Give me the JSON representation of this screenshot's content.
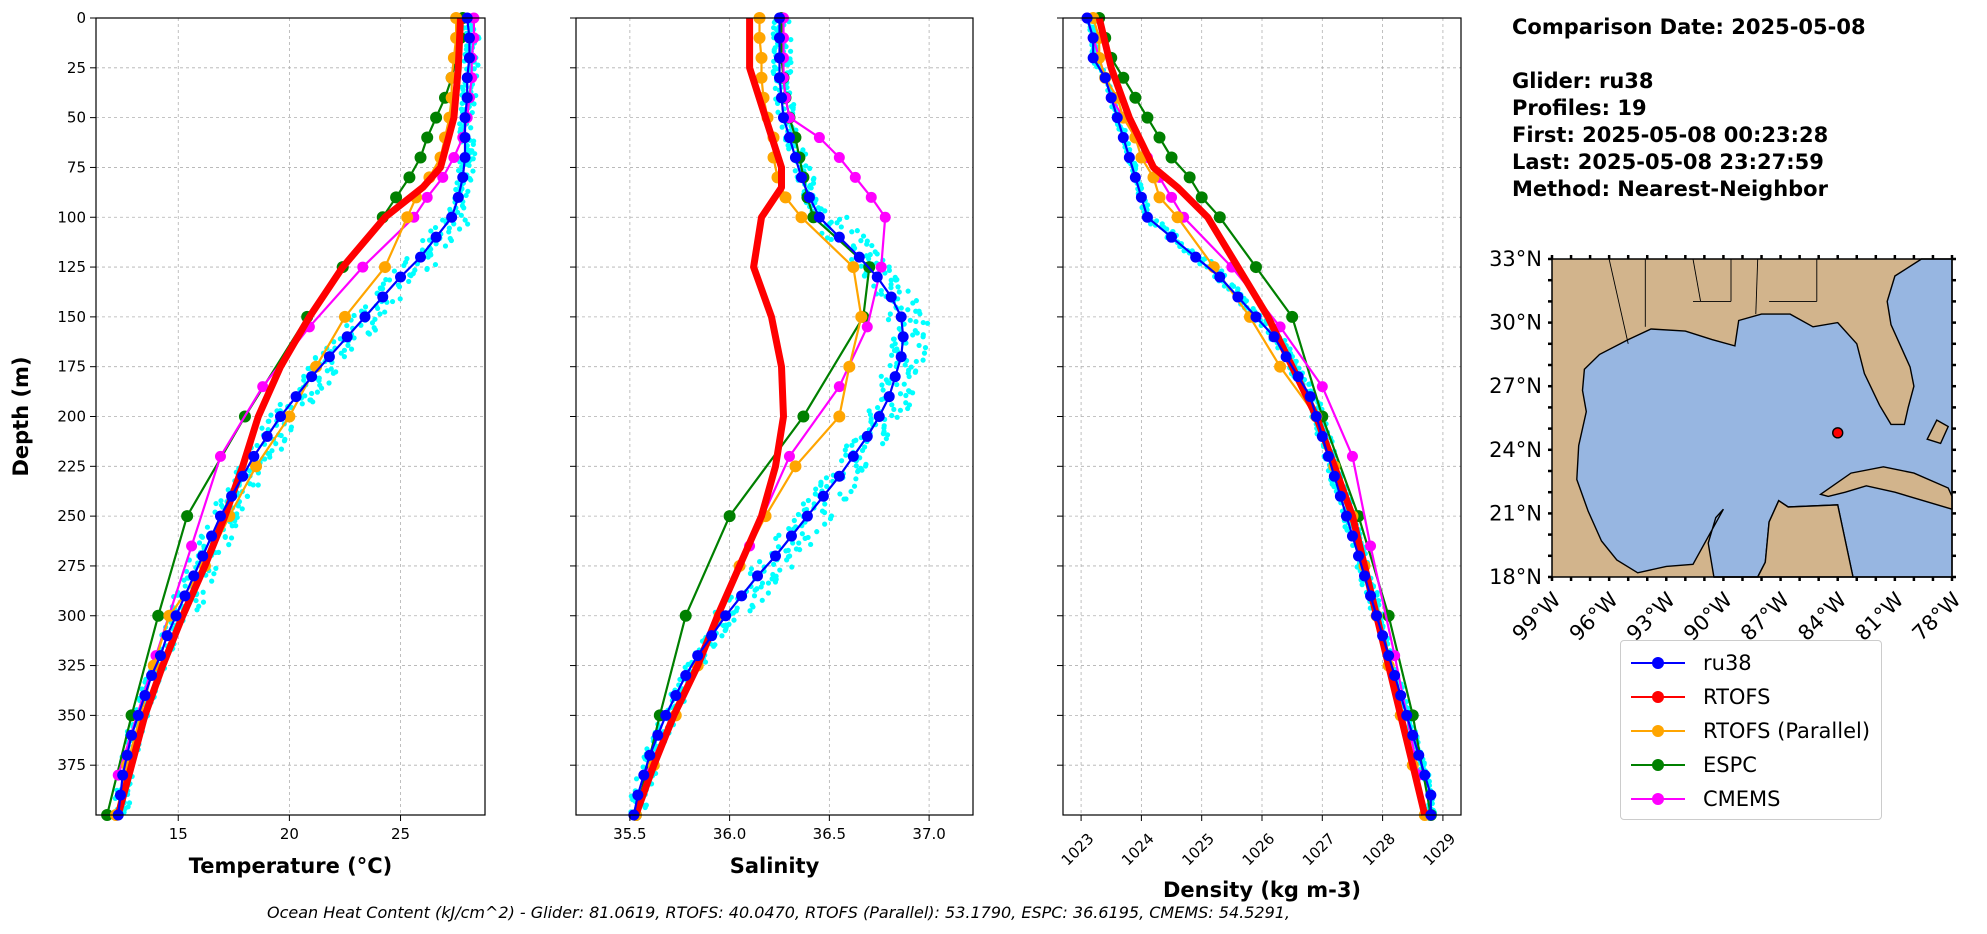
{
  "info": {
    "comparison_date": "Comparison Date: 2025-05-08",
    "glider": "Glider: ru38",
    "profiles": "Profiles: 19",
    "first": "First: 2025-05-08 00:23:28",
    "last": "Last: 2025-05-08 23:27:59",
    "method": "Method: Nearest-Neighbor"
  },
  "footnote": "Ocean Heat Content (kJ/cm^2) - Glider: 81.0619,  RTOFS: 40.0470,  RTOFS (Parallel): 53.1790,  ESPC: 36.6195,  CMEMS: 54.5291,",
  "legend": [
    {
      "name": "ru38",
      "color": "#0000ff"
    },
    {
      "name": "RTOFS",
      "color": "#ff0000"
    },
    {
      "name": "RTOFS (Parallel)",
      "color": "#ffa500"
    },
    {
      "name": "ESPC",
      "color": "#008000"
    },
    {
      "name": "CMEMS",
      "color": "#ff00ff"
    }
  ],
  "map": {
    "lat_ticks": [
      "33°N",
      "30°N",
      "27°N",
      "24°N",
      "21°N",
      "18°N"
    ],
    "lon_ticks": [
      "99°W",
      "96°W",
      "93°W",
      "90°W",
      "87°W",
      "84°W",
      "81°W",
      "78°W"
    ],
    "extent": {
      "lon": [
        -99,
        -78
      ],
      "lat": [
        18,
        33
      ]
    },
    "glider_position": {
      "lon": -84.0,
      "lat": 24.8
    },
    "land_color": "#d2b48c",
    "ocean_color": "#97b6e1"
  },
  "chart_data": [
    {
      "type": "line",
      "xlabel": "Temperature (°C)",
      "ylabel": "Depth (m)",
      "xlim": [
        11.3,
        28.8
      ],
      "ylim": [
        400,
        0
      ],
      "xticks": [
        15,
        20,
        25
      ],
      "yticks": [
        0,
        25,
        50,
        75,
        100,
        125,
        150,
        175,
        200,
        225,
        250,
        275,
        300,
        325,
        350,
        375
      ],
      "grid": true,
      "glider_profiles_color": "#00ffff",
      "series": [
        {
          "name": "ru38",
          "depth": [
            0,
            10,
            20,
            30,
            40,
            50,
            60,
            70,
            80,
            90,
            100,
            110,
            120,
            130,
            140,
            150,
            160,
            170,
            180,
            190,
            200,
            210,
            220,
            230,
            240,
            250,
            260,
            270,
            280,
            290,
            300,
            310,
            320,
            330,
            340,
            350,
            360,
            370,
            380,
            390,
            400
          ],
          "x": [
            28.0,
            28.1,
            28.1,
            28.0,
            28.0,
            27.9,
            27.9,
            27.9,
            27.8,
            27.6,
            27.3,
            26.6,
            25.9,
            25.0,
            24.2,
            23.4,
            22.6,
            21.8,
            21.0,
            20.3,
            19.6,
            19.0,
            18.4,
            17.9,
            17.4,
            16.9,
            16.5,
            16.1,
            15.7,
            15.3,
            14.9,
            14.5,
            14.2,
            13.8,
            13.5,
            13.2,
            12.9,
            12.7,
            12.5,
            12.4,
            12.3
          ]
        },
        {
          "name": "RTOFS",
          "depth": [
            0,
            25,
            50,
            75,
            85,
            100,
            125,
            150,
            175,
            200,
            225,
            250,
            275,
            300,
            325,
            350,
            375,
            400
          ],
          "x": [
            27.7,
            27.6,
            27.4,
            26.8,
            26.0,
            24.3,
            22.4,
            20.9,
            19.6,
            18.6,
            17.9,
            17.1,
            16.2,
            15.2,
            14.3,
            13.5,
            12.9,
            12.3
          ]
        },
        {
          "name": "RTOFS (Parallel)",
          "depth": [
            0,
            10,
            20,
            30,
            40,
            50,
            60,
            70,
            80,
            90,
            100,
            125,
            150,
            175,
            200,
            225,
            250,
            275,
            300,
            325,
            350,
            375,
            400
          ],
          "x": [
            27.5,
            27.5,
            27.4,
            27.3,
            27.3,
            27.2,
            27.0,
            26.8,
            26.3,
            25.7,
            25.3,
            24.3,
            22.5,
            21.2,
            20.0,
            18.5,
            17.3,
            16.2,
            14.6,
            13.9,
            13.3,
            12.7,
            12.2
          ]
        },
        {
          "name": "ESPC",
          "depth": [
            0,
            10,
            20,
            30,
            40,
            50,
            60,
            70,
            80,
            90,
            100,
            125,
            150,
            200,
            250,
            300,
            350,
            400
          ],
          "x": [
            27.8,
            27.7,
            27.5,
            27.3,
            27.0,
            26.6,
            26.2,
            25.9,
            25.4,
            24.8,
            24.2,
            22.4,
            20.8,
            18.0,
            15.4,
            14.1,
            12.9,
            11.8
          ]
        },
        {
          "name": "CMEMS",
          "depth": [
            0,
            10,
            20,
            30,
            40,
            50,
            60,
            70,
            80,
            90,
            100,
            125,
            155,
            185,
            220,
            265,
            320,
            380
          ],
          "x": [
            28.3,
            28.3,
            28.2,
            28.2,
            28.1,
            28.0,
            27.8,
            27.4,
            26.9,
            26.2,
            25.6,
            23.3,
            20.9,
            18.8,
            16.9,
            15.6,
            14.0,
            12.3
          ]
        }
      ]
    },
    {
      "type": "line",
      "xlabel": "Salinity",
      "ylabel": "",
      "xlim": [
        35.23,
        37.22
      ],
      "ylim": [
        400,
        0
      ],
      "xticks": [
        35.5,
        36.0,
        36.5,
        37.0
      ],
      "yticks": [
        0,
        25,
        50,
        75,
        100,
        125,
        150,
        175,
        200,
        225,
        250,
        275,
        300,
        325,
        350,
        375
      ],
      "grid": true,
      "series": [
        {
          "name": "ru38",
          "depth": [
            0,
            10,
            20,
            30,
            40,
            50,
            60,
            70,
            80,
            90,
            100,
            110,
            120,
            130,
            140,
            150,
            160,
            170,
            180,
            190,
            200,
            210,
            220,
            230,
            240,
            250,
            260,
            270,
            280,
            290,
            300,
            310,
            320,
            330,
            340,
            350,
            360,
            370,
            380,
            390,
            400
          ],
          "x": [
            36.25,
            36.25,
            36.25,
            36.25,
            36.26,
            36.27,
            36.3,
            36.33,
            36.36,
            36.4,
            36.45,
            36.55,
            36.65,
            36.74,
            36.81,
            36.86,
            36.87,
            36.86,
            36.83,
            36.8,
            36.75,
            36.69,
            36.62,
            36.55,
            36.47,
            36.39,
            36.31,
            36.23,
            36.14,
            36.06,
            35.98,
            35.91,
            35.84,
            35.78,
            35.73,
            35.68,
            35.64,
            35.6,
            35.57,
            35.54,
            35.52
          ]
        },
        {
          "name": "RTOFS",
          "depth": [
            0,
            25,
            50,
            75,
            85,
            100,
            125,
            150,
            175,
            200,
            225,
            250,
            275,
            300,
            325,
            350,
            375,
            400
          ],
          "x": [
            36.1,
            36.1,
            36.18,
            36.26,
            36.26,
            36.16,
            36.12,
            36.21,
            36.26,
            36.27,
            36.23,
            36.16,
            36.05,
            35.94,
            35.84,
            35.72,
            35.62,
            35.53
          ]
        },
        {
          "name": "RTOFS (Parallel)",
          "depth": [
            0,
            10,
            20,
            30,
            40,
            50,
            60,
            70,
            80,
            90,
            100,
            125,
            150,
            175,
            200,
            225,
            250,
            275,
            300,
            325,
            350,
            375,
            400
          ],
          "x": [
            36.15,
            36.15,
            36.16,
            36.16,
            36.17,
            36.19,
            36.22,
            36.22,
            36.24,
            36.28,
            36.36,
            36.62,
            36.66,
            36.6,
            36.55,
            36.33,
            36.18,
            36.05,
            35.95,
            35.84,
            35.73,
            35.62,
            35.53
          ]
        },
        {
          "name": "ESPC",
          "depth": [
            0,
            10,
            20,
            30,
            40,
            50,
            60,
            70,
            80,
            90,
            100,
            125,
            150,
            200,
            250,
            300,
            350,
            400
          ],
          "x": [
            36.26,
            36.26,
            36.26,
            36.27,
            36.28,
            36.3,
            36.33,
            36.35,
            36.37,
            36.39,
            36.42,
            36.7,
            36.67,
            36.37,
            36.0,
            35.78,
            35.65,
            35.53
          ]
        },
        {
          "name": "CMEMS",
          "depth": [
            0,
            10,
            20,
            30,
            40,
            50,
            60,
            70,
            80,
            90,
            100,
            125,
            155,
            185,
            220,
            265,
            320,
            380
          ],
          "x": [
            36.27,
            36.27,
            36.27,
            36.27,
            36.28,
            36.3,
            36.45,
            36.55,
            36.63,
            36.71,
            36.78,
            36.76,
            36.69,
            36.55,
            36.3,
            36.1,
            35.85,
            35.58
          ]
        }
      ]
    },
    {
      "type": "line",
      "xlabel": "Density (kg m-3)",
      "ylabel": "",
      "xlim": [
        1022.7,
        1029.3
      ],
      "ylim": [
        400,
        0
      ],
      "xticks": [
        1023,
        1024,
        1025,
        1026,
        1027,
        1028,
        1029
      ],
      "yticks": [
        0,
        25,
        50,
        75,
        100,
        125,
        150,
        175,
        200,
        225,
        250,
        275,
        300,
        325,
        350,
        375
      ],
      "grid": true,
      "series": [
        {
          "name": "ru38",
          "depth": [
            0,
            10,
            20,
            30,
            40,
            50,
            60,
            70,
            80,
            90,
            100,
            110,
            120,
            130,
            140,
            150,
            160,
            170,
            180,
            190,
            200,
            210,
            220,
            230,
            240,
            250,
            260,
            270,
            280,
            290,
            300,
            310,
            320,
            330,
            340,
            350,
            360,
            370,
            380,
            390,
            400
          ],
          "x": [
            1023.1,
            1023.2,
            1023.2,
            1023.4,
            1023.5,
            1023.6,
            1023.7,
            1023.8,
            1023.9,
            1024.0,
            1024.1,
            1024.5,
            1024.9,
            1025.3,
            1025.6,
            1025.9,
            1026.2,
            1026.4,
            1026.6,
            1026.8,
            1026.9,
            1027.0,
            1027.1,
            1027.2,
            1027.3,
            1027.4,
            1027.5,
            1027.6,
            1027.7,
            1027.8,
            1027.9,
            1028.0,
            1028.1,
            1028.2,
            1028.3,
            1028.4,
            1028.5,
            1028.6,
            1028.7,
            1028.8,
            1028.8
          ]
        },
        {
          "name": "RTOFS",
          "depth": [
            0,
            25,
            50,
            75,
            85,
            100,
            125,
            150,
            175,
            200,
            225,
            250,
            275,
            300,
            325,
            350,
            375,
            400
          ],
          "x": [
            1023.3,
            1023.5,
            1023.8,
            1024.2,
            1024.6,
            1025.1,
            1025.6,
            1026.1,
            1026.5,
            1026.9,
            1027.2,
            1027.5,
            1027.7,
            1027.9,
            1028.1,
            1028.3,
            1028.5,
            1028.7
          ]
        },
        {
          "name": "RTOFS (Parallel)",
          "depth": [
            0,
            10,
            20,
            30,
            40,
            50,
            60,
            70,
            80,
            90,
            100,
            125,
            150,
            175,
            200,
            225,
            250,
            275,
            300,
            325,
            350,
            375,
            400
          ],
          "x": [
            1023.2,
            1023.3,
            1023.3,
            1023.4,
            1023.6,
            1023.7,
            1023.9,
            1024.0,
            1024.2,
            1024.3,
            1024.6,
            1025.2,
            1025.8,
            1026.3,
            1026.9,
            1027.2,
            1027.5,
            1027.7,
            1027.9,
            1028.1,
            1028.3,
            1028.5,
            1028.7
          ]
        },
        {
          "name": "ESPC",
          "depth": [
            0,
            10,
            20,
            30,
            40,
            50,
            60,
            70,
            80,
            90,
            100,
            125,
            150,
            200,
            250,
            300,
            350,
            400
          ],
          "x": [
            1023.3,
            1023.4,
            1023.5,
            1023.7,
            1023.9,
            1024.1,
            1024.3,
            1024.5,
            1024.8,
            1025.0,
            1025.3,
            1025.9,
            1026.5,
            1027.0,
            1027.6,
            1028.1,
            1028.5,
            1028.8
          ]
        },
        {
          "name": "CMEMS",
          "depth": [
            0,
            10,
            20,
            30,
            40,
            50,
            60,
            70,
            80,
            90,
            100,
            125,
            155,
            185,
            220,
            265,
            320,
            380
          ],
          "x": [
            1023.1,
            1023.2,
            1023.3,
            1023.4,
            1023.5,
            1023.7,
            1023.9,
            1024.1,
            1024.3,
            1024.5,
            1024.7,
            1025.5,
            1026.3,
            1027.0,
            1027.5,
            1027.8,
            1028.2,
            1028.6
          ]
        }
      ]
    }
  ]
}
